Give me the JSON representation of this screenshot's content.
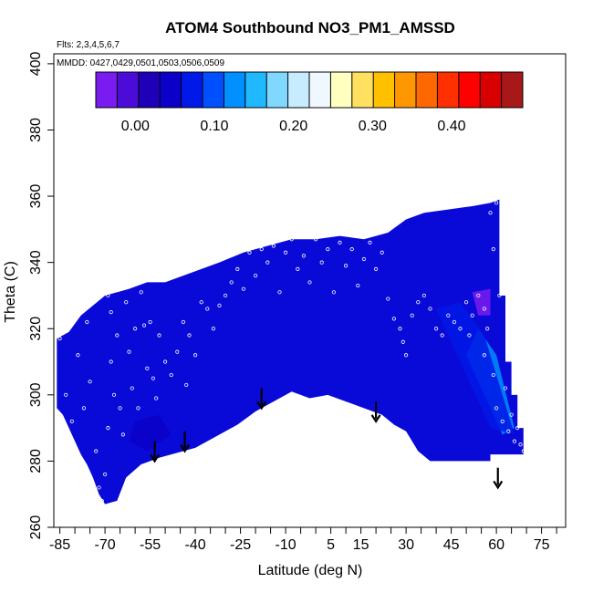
{
  "chart_data": {
    "type": "heatmap",
    "title": "ATOM4 Southbound NO3_PM1_AMSSD",
    "flights_note": "Flts: 2,3,4,5,6,7",
    "dates_note": "MMDD: 0427,0429,0501,0503,0506,0509",
    "xlabel": "Latitude (deg N)",
    "ylabel": "Theta (C)",
    "xlim": [
      -87,
      83
    ],
    "ylim": [
      260,
      403
    ],
    "x_ticks": [
      -85,
      -70,
      -55,
      -40,
      -25,
      -10,
      5,
      15,
      30,
      45,
      60,
      75
    ],
    "x_minor_ticks": [
      -80,
      -75,
      -65,
      -60,
      -50,
      -45,
      -35,
      -30,
      -20,
      -15,
      -5,
      0,
      10,
      20,
      25,
      35,
      40,
      50,
      55,
      65,
      70,
      80
    ],
    "y_ticks": [
      260,
      280,
      300,
      320,
      340,
      360,
      380,
      400
    ],
    "colorbar": {
      "range": [
        -0.05,
        0.49
      ],
      "tick_values": [
        0.0,
        0.1,
        0.2,
        0.3,
        0.4
      ],
      "tick_labels": [
        "0.00",
        "0.10",
        "0.20",
        "0.30",
        "0.40"
      ],
      "colors": [
        "#7a1cf0",
        "#4c0cd8",
        "#1f00b8",
        "#0a00c8",
        "#0018e8",
        "#0050ff",
        "#0090ff",
        "#20b8ff",
        "#80d8ff",
        "#c8ecff",
        "#f0f8ff",
        "#ffffc0",
        "#ffe060",
        "#ffc000",
        "#ff9800",
        "#ff6800",
        "#ff3000",
        "#ff0000",
        "#d80000",
        "#a81818"
      ]
    },
    "field": {
      "background_color": "#0a0ad8",
      "upper_boundary": [
        [
          -86,
          317
        ],
        [
          -82,
          319
        ],
        [
          -78,
          324
        ],
        [
          -74,
          327
        ],
        [
          -70,
          330
        ],
        [
          -66,
          331
        ],
        [
          -62,
          332
        ],
        [
          -56,
          334
        ],
        [
          -50,
          334
        ],
        [
          -44,
          336
        ],
        [
          -38,
          338
        ],
        [
          -32,
          340
        ],
        [
          -24,
          343
        ],
        [
          -16,
          345
        ],
        [
          -8,
          347
        ],
        [
          0,
          347
        ],
        [
          8,
          348
        ],
        [
          16,
          347
        ],
        [
          24,
          349
        ],
        [
          30,
          353
        ],
        [
          36,
          355
        ],
        [
          44,
          356
        ],
        [
          52,
          357
        ],
        [
          58,
          358
        ],
        [
          61,
          359
        ],
        [
          61,
          330
        ],
        [
          63,
          330
        ],
        [
          63,
          310
        ],
        [
          65,
          310
        ],
        [
          65,
          300
        ],
        [
          67,
          300
        ],
        [
          67,
          290
        ],
        [
          69,
          290
        ],
        [
          69,
          282
        ]
      ],
      "lower_boundary": [
        [
          -86,
          296
        ],
        [
          -84,
          294
        ],
        [
          -82,
          290
        ],
        [
          -80,
          286
        ],
        [
          -78,
          282
        ],
        [
          -76,
          279
        ],
        [
          -74,
          275
        ],
        [
          -72,
          270
        ],
        [
          -70,
          267
        ],
        [
          -66,
          268
        ],
        [
          -63,
          275
        ],
        [
          -58,
          279
        ],
        [
          -52,
          281
        ],
        [
          -48,
          282
        ],
        [
          -44,
          283
        ],
        [
          -40,
          284
        ],
        [
          -36,
          286
        ],
        [
          -30,
          289
        ],
        [
          -26,
          291
        ],
        [
          -20,
          295
        ],
        [
          -14,
          298
        ],
        [
          -8,
          301
        ],
        [
          -2,
          299
        ],
        [
          4,
          300
        ],
        [
          10,
          298
        ],
        [
          16,
          296
        ],
        [
          22,
          294
        ],
        [
          26,
          291
        ],
        [
          30,
          289
        ],
        [
          34,
          283
        ],
        [
          38,
          280
        ],
        [
          48,
          280
        ],
        [
          58,
          280
        ],
        [
          58,
          282
        ],
        [
          69,
          282
        ]
      ],
      "features": [
        {
          "kind": "plume",
          "value": 0.12,
          "points": [
            [
              50,
              312
            ],
            [
              54,
              320
            ],
            [
              60,
              312
            ],
            [
              66,
              290
            ],
            [
              62,
              288
            ]
          ]
        },
        {
          "kind": "plume",
          "value": 0.06,
          "points": [
            [
              40,
              326
            ],
            [
              48,
              328
            ],
            [
              56,
              318
            ],
            [
              66,
              288
            ],
            [
              58,
              290
            ],
            [
              48,
              310
            ]
          ]
        },
        {
          "kind": "patch",
          "value": 0.05,
          "points": [
            [
              -60,
              292
            ],
            [
              -52,
              294
            ],
            [
              -48,
              288
            ],
            [
              -56,
              283
            ],
            [
              -62,
              286
            ]
          ]
        },
        {
          "kind": "patch",
          "value": -0.03,
          "points": [
            [
              52,
              331
            ],
            [
              58,
              332
            ],
            [
              58,
              324
            ],
            [
              54,
              324
            ]
          ]
        }
      ]
    },
    "observations": [
      [
        -85,
        317
      ],
      [
        -83,
        300
      ],
      [
        -81,
        292
      ],
      [
        -79,
        312
      ],
      [
        -77,
        296
      ],
      [
        -76,
        322
      ],
      [
        -75,
        304
      ],
      [
        -73,
        283
      ],
      [
        -72,
        272
      ],
      [
        -71,
        268
      ],
      [
        -70,
        276
      ],
      [
        -69,
        330
      ],
      [
        -69,
        290
      ],
      [
        -68,
        325
      ],
      [
        -68,
        310
      ],
      [
        -67,
        300
      ],
      [
        -66,
        318
      ],
      [
        -65,
        296
      ],
      [
        -64,
        288
      ],
      [
        -63,
        328
      ],
      [
        -62,
        313
      ],
      [
        -61,
        302
      ],
      [
        -60,
        320
      ],
      [
        -59,
        296
      ],
      [
        -58,
        331
      ],
      [
        -57,
        321
      ],
      [
        -56,
        308
      ],
      [
        -55,
        322
      ],
      [
        -54,
        305
      ],
      [
        -53,
        299
      ],
      [
        -52,
        318
      ],
      [
        -50,
        310
      ],
      [
        -48,
        306
      ],
      [
        -46,
        313
      ],
      [
        -44,
        322
      ],
      [
        -43,
        303
      ],
      [
        -42,
        318
      ],
      [
        -40,
        312
      ],
      [
        -38,
        328
      ],
      [
        -36,
        326
      ],
      [
        -34,
        320
      ],
      [
        -32,
        327
      ],
      [
        -30,
        330
      ],
      [
        -28,
        334
      ],
      [
        -26,
        338
      ],
      [
        -24,
        332
      ],
      [
        -22,
        343
      ],
      [
        -20,
        336
      ],
      [
        -18,
        344
      ],
      [
        -16,
        340
      ],
      [
        -14,
        345
      ],
      [
        -12,
        331
      ],
      [
        -10,
        343
      ],
      [
        -8,
        347
      ],
      [
        -6,
        338
      ],
      [
        -4,
        342
      ],
      [
        -2,
        334
      ],
      [
        0,
        347
      ],
      [
        2,
        340
      ],
      [
        4,
        344
      ],
      [
        6,
        331
      ],
      [
        8,
        346
      ],
      [
        10,
        339
      ],
      [
        12,
        344
      ],
      [
        14,
        333
      ],
      [
        16,
        341
      ],
      [
        18,
        346
      ],
      [
        20,
        338
      ],
      [
        22,
        343
      ],
      [
        24,
        329
      ],
      [
        26,
        323
      ],
      [
        28,
        320
      ],
      [
        29,
        316
      ],
      [
        30,
        312
      ],
      [
        32,
        324
      ],
      [
        34,
        328
      ],
      [
        36,
        330
      ],
      [
        38,
        326
      ],
      [
        40,
        320
      ],
      [
        42,
        318
      ],
      [
        44,
        324
      ],
      [
        46,
        322
      ],
      [
        48,
        320
      ],
      [
        50,
        328
      ],
      [
        51,
        318
      ],
      [
        52,
        324
      ],
      [
        54,
        330
      ],
      [
        56,
        326
      ],
      [
        56,
        312
      ],
      [
        57,
        320
      ],
      [
        58,
        355
      ],
      [
        59,
        344
      ],
      [
        59,
        306
      ],
      [
        60,
        358
      ],
      [
        60,
        296
      ],
      [
        61,
        330
      ],
      [
        62,
        292
      ],
      [
        63,
        302
      ],
      [
        64,
        289
      ],
      [
        65,
        294
      ],
      [
        66,
        286
      ],
      [
        67,
        290
      ],
      [
        68,
        285
      ],
      [
        69,
        283
      ]
    ],
    "arrows": [
      {
        "x": -53.5,
        "y_top": 286,
        "y_bottom": 280
      },
      {
        "x": -43.5,
        "y_top": 289,
        "y_bottom": 283
      },
      {
        "x": -18,
        "y_top": 302,
        "y_bottom": 296
      },
      {
        "x": 20,
        "y_top": 298,
        "y_bottom": 292
      },
      {
        "x": 60.5,
        "y_top": 278,
        "y_bottom": 272
      }
    ]
  }
}
